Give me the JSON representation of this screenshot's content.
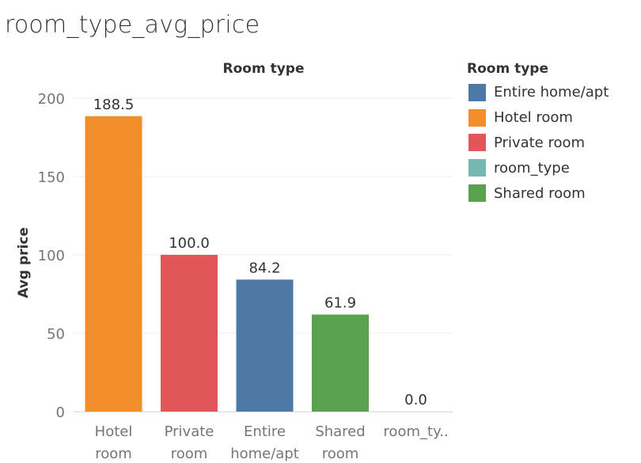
{
  "title": "room_type_avg_price",
  "chart_data": {
    "type": "bar",
    "title": "room_type_avg_price",
    "header": "Room type",
    "ylabel": "Avg price",
    "xlabel": "",
    "ylim": [
      0,
      215
    ],
    "yticks": [
      0,
      50,
      100,
      150,
      200
    ],
    "grid": true,
    "legend_position": "right",
    "categories": [
      {
        "lines": [
          "Hotel",
          "room"
        ],
        "name": "Hotel room"
      },
      {
        "lines": [
          "Private",
          "room"
        ],
        "name": "Private room"
      },
      {
        "lines": [
          "Entire",
          "home/apt"
        ],
        "name": "Entire home/apt"
      },
      {
        "lines": [
          "Shared",
          "room"
        ],
        "name": "Shared room"
      },
      {
        "lines": [
          "room_ty.."
        ],
        "name": "room_type"
      }
    ],
    "values": [
      188.5,
      100.0,
      84.2,
      61.9,
      0.0
    ],
    "value_labels": [
      "188.5",
      "100.0",
      "84.2",
      "61.9",
      "0.0"
    ],
    "bar_colors": [
      "#f28e2b",
      "#e15759",
      "#4e79a7",
      "#59a14f",
      "#76b7b2"
    ]
  },
  "legend": {
    "title": "Room type",
    "items": [
      {
        "label": "Entire home/apt",
        "color": "#4e79a7"
      },
      {
        "label": "Hotel room",
        "color": "#f28e2b"
      },
      {
        "label": "Private room",
        "color": "#e15759"
      },
      {
        "label": "room_type",
        "color": "#76b7b2"
      },
      {
        "label": "Shared room",
        "color": "#59a14f"
      }
    ]
  }
}
